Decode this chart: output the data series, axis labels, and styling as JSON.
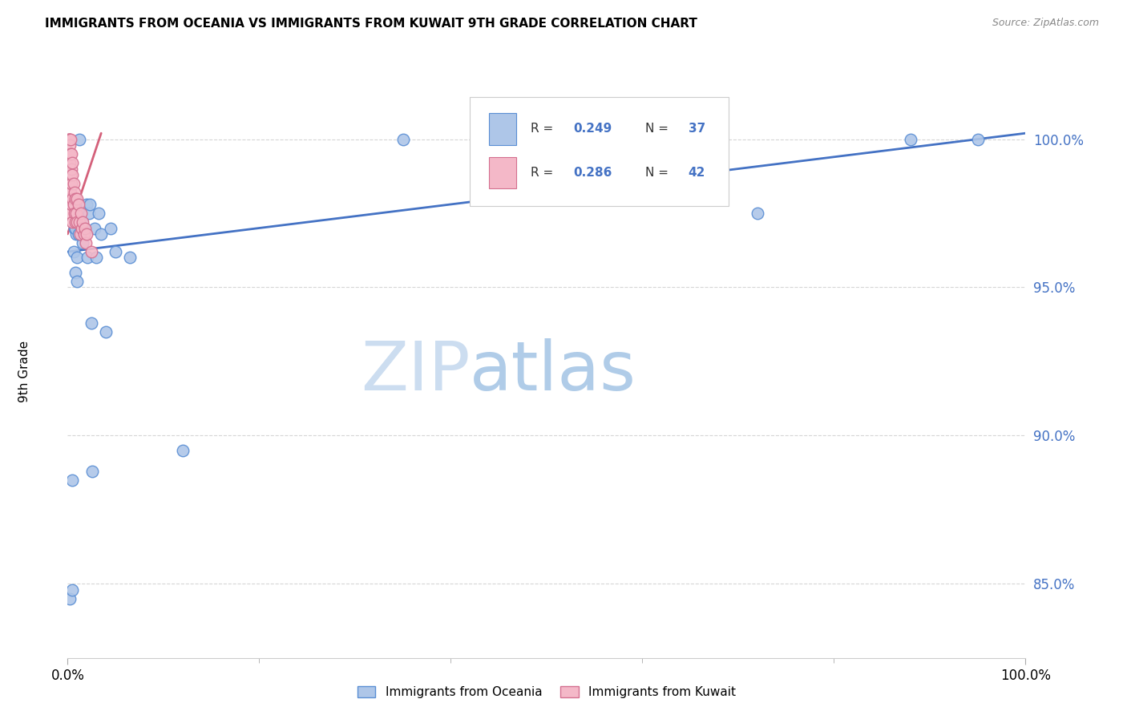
{
  "title": "IMMIGRANTS FROM OCEANIA VS IMMIGRANTS FROM KUWAIT 9TH GRADE CORRELATION CHART",
  "source": "Source: ZipAtlas.com",
  "ylabel": "9th Grade",
  "legend_r_oceania": "0.249",
  "legend_n_oceania": "37",
  "legend_r_kuwait": "0.286",
  "legend_n_kuwait": "42",
  "legend_label_oceania": "Immigrants from Oceania",
  "legend_label_kuwait": "Immigrants from Kuwait",
  "color_oceania_fill": "#aec6e8",
  "color_oceania_edge": "#5b8fd4",
  "color_kuwait_fill": "#f4b8c8",
  "color_kuwait_edge": "#d47090",
  "color_blue": "#4472c4",
  "color_pink": "#d4607a",
  "watermark": "ZIPatlas",
  "oceania_x": [
    0.2,
    0.5,
    0.5,
    0.6,
    0.7,
    0.8,
    0.9,
    1.0,
    1.1,
    1.2,
    1.3,
    1.5,
    1.6,
    1.8,
    2.0,
    2.1,
    2.2,
    2.3,
    2.5,
    2.8,
    3.0,
    3.2,
    3.5,
    4.0,
    4.5,
    5.0,
    6.5,
    12.0,
    35.0,
    60.0,
    72.0,
    88.0,
    95.0,
    0.8,
    1.0,
    1.1,
    2.6
  ],
  "oceania_y": [
    84.5,
    84.8,
    88.5,
    96.2,
    97.0,
    95.5,
    96.8,
    96.0,
    97.8,
    100.0,
    97.5,
    97.2,
    96.5,
    97.0,
    97.8,
    96.0,
    97.5,
    97.8,
    93.8,
    97.0,
    96.0,
    97.5,
    96.8,
    93.5,
    97.0,
    96.2,
    96.0,
    89.5,
    100.0,
    100.0,
    97.5,
    100.0,
    100.0,
    97.0,
    95.2,
    96.8,
    88.8
  ],
  "kuwait_x": [
    0.1,
    0.1,
    0.1,
    0.1,
    0.1,
    0.2,
    0.2,
    0.2,
    0.2,
    0.3,
    0.3,
    0.3,
    0.3,
    0.3,
    0.4,
    0.4,
    0.4,
    0.4,
    0.5,
    0.5,
    0.5,
    0.5,
    0.6,
    0.6,
    0.7,
    0.7,
    0.8,
    0.8,
    0.9,
    1.0,
    1.0,
    1.1,
    1.2,
    1.3,
    1.4,
    1.5,
    1.6,
    1.7,
    1.8,
    1.9,
    2.0,
    2.5
  ],
  "kuwait_y": [
    100.0,
    100.0,
    100.0,
    99.5,
    98.5,
    100.0,
    99.8,
    99.2,
    98.0,
    100.0,
    99.5,
    98.8,
    98.2,
    97.5,
    99.5,
    99.0,
    98.5,
    97.8,
    99.2,
    98.8,
    98.0,
    97.2,
    98.5,
    97.8,
    98.2,
    97.5,
    98.0,
    97.2,
    97.5,
    98.0,
    97.2,
    97.8,
    97.2,
    96.8,
    97.5,
    97.0,
    97.2,
    96.8,
    97.0,
    96.5,
    96.8,
    96.2
  ],
  "blue_line_x0": 0.0,
  "blue_line_y0": 96.2,
  "blue_line_x1": 100.0,
  "blue_line_y1": 100.2,
  "pink_line_x0": 0.0,
  "pink_line_y0": 96.8,
  "pink_line_x1": 3.5,
  "pink_line_y1": 100.2,
  "xlim": [
    0,
    100
  ],
  "ylim_bottom": 82.5,
  "ylim_top": 101.8
}
